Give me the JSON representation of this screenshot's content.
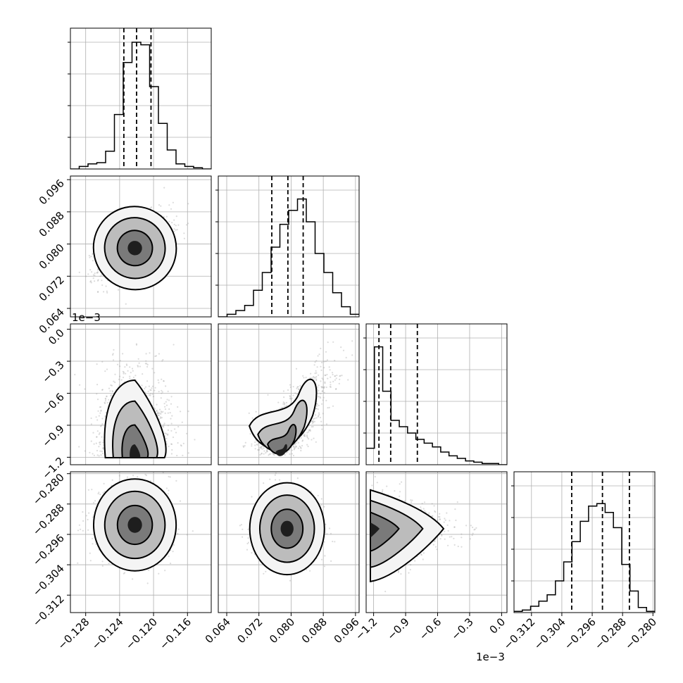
{
  "chart_data": {
    "type": "corner",
    "parameters": [
      {
        "ticks": [
          -0.128,
          -0.124,
          -0.12,
          -0.116
        ],
        "tick_labels": [
          "−0.128",
          "−0.124",
          "−0.120",
          "−0.116"
        ],
        "range": [
          -0.1298,
          -0.1132
        ],
        "quantiles": [
          -0.1235,
          -0.122,
          -0.1203
        ],
        "peak": -0.1222,
        "width": 0.0022,
        "hist": [
          0.0,
          0.02,
          0.04,
          0.05,
          0.14,
          0.43,
          0.84,
          1.0,
          0.98,
          0.65,
          0.36,
          0.15,
          0.04,
          0.02,
          0.01,
          0.0
        ],
        "offset_text": ""
      },
      {
        "ticks": [
          0.064,
          0.072,
          0.08,
          0.088,
          0.096
        ],
        "tick_labels": [
          "0.064",
          "0.072",
          "0.080",
          "0.088",
          "0.096"
        ],
        "range": [
          0.0619,
          0.0969
        ],
        "quantiles": [
          0.0752,
          0.0792,
          0.083
        ],
        "peak": 0.079,
        "width": 0.0042,
        "hist": [
          0.0,
          0.02,
          0.05,
          0.09,
          0.21,
          0.35,
          0.55,
          0.73,
          0.84,
          0.93,
          0.75,
          0.5,
          0.35,
          0.19,
          0.08,
          0.02
        ],
        "offset_text": ""
      },
      {
        "ticks": [
          -1.2,
          -0.9,
          -0.6,
          -0.3,
          0.0
        ],
        "tick_labels": [
          "−1.2",
          "−0.9",
          "−0.6",
          "−0.3",
          "0.0"
        ],
        "range": [
          -1.27,
          0.05
        ],
        "quantiles": [
          -1.15,
          -1.04,
          -0.79
        ],
        "peak": -1.15,
        "width": 0.2,
        "hist": [
          0.13,
          0.93,
          0.58,
          0.35,
          0.3,
          0.25,
          0.2,
          0.17,
          0.14,
          0.1,
          0.07,
          0.05,
          0.03,
          0.02,
          0.01,
          0.01,
          0.0
        ],
        "offset_text": "1e−3"
      },
      {
        "ticks": [
          -0.312,
          -0.304,
          -0.296,
          -0.288,
          -0.28
        ],
        "tick_labels": [
          "−0.312",
          "−0.304",
          "−0.296",
          "−0.288",
          "−0.280"
        ],
        "range": [
          -0.3166,
          -0.2795
        ],
        "quantiles": [
          -0.3014,
          -0.2933,
          -0.2862
        ],
        "peak": -0.2935,
        "width": 0.0049,
        "hist": [
          0.01,
          0.02,
          0.05,
          0.09,
          0.14,
          0.25,
          0.4,
          0.56,
          0.72,
          0.84,
          0.86,
          0.79,
          0.67,
          0.38,
          0.17,
          0.04,
          0.01
        ],
        "offset_text": ""
      }
    ],
    "pairs": [
      {
        "x": 0,
        "y": 1,
        "center": [
          -0.1222,
          0.079
        ],
        "shape": "ellipse-tilted"
      },
      {
        "x": 0,
        "y": 2,
        "center": [
          -0.1222,
          -1.12
        ],
        "shape": "bounded-bottom"
      },
      {
        "x": 1,
        "y": 2,
        "center": [
          0.0775,
          -1.12
        ],
        "shape": "curved"
      },
      {
        "x": 0,
        "y": 3,
        "center": [
          -0.1222,
          -0.2935
        ],
        "shape": "ellipse"
      },
      {
        "x": 1,
        "y": 3,
        "center": [
          0.079,
          -0.2945
        ],
        "shape": "ellipse"
      },
      {
        "x": 2,
        "y": 3,
        "center": [
          -1.16,
          -0.2945
        ],
        "shape": "wedge"
      }
    ],
    "grid": true,
    "quantile_levels": [
      0.16,
      0.5,
      0.84
    ]
  }
}
